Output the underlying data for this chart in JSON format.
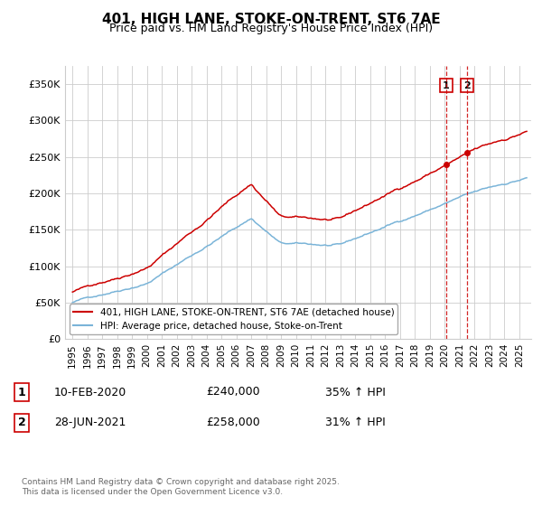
{
  "title": "401, HIGH LANE, STOKE-ON-TRENT, ST6 7AE",
  "subtitle": "Price paid vs. HM Land Registry's House Price Index (HPI)",
  "ylabel_ticks": [
    "£0",
    "£50K",
    "£100K",
    "£150K",
    "£200K",
    "£250K",
    "£300K",
    "£350K"
  ],
  "ytick_vals": [
    0,
    50000,
    100000,
    150000,
    200000,
    250000,
    300000,
    350000
  ],
  "ylim": [
    0,
    375000
  ],
  "xlim_start": 1994.5,
  "xlim_end": 2025.8,
  "sale1_date": 2020.1,
  "sale1_price": 240000,
  "sale1_label": "1",
  "sale2_date": 2021.5,
  "sale2_price": 258000,
  "sale2_label": "2",
  "hpi_color": "#7ab4d8",
  "price_color": "#cc0000",
  "vline_color": "#cc0000",
  "grid_color": "#cccccc",
  "background_color": "#ffffff",
  "legend1_text": "401, HIGH LANE, STOKE-ON-TRENT, ST6 7AE (detached house)",
  "legend2_text": "HPI: Average price, detached house, Stoke-on-Trent",
  "sale_info": [
    {
      "num": "1",
      "date": "10-FEB-2020",
      "price": "£240,000",
      "hpi": "35% ↑ HPI"
    },
    {
      "num": "2",
      "date": "28-JUN-2021",
      "price": "£258,000",
      "hpi": "31% ↑ HPI"
    }
  ],
  "footer": "Contains HM Land Registry data © Crown copyright and database right 2025.\nThis data is licensed under the Open Government Licence v3.0.",
  "xtick_years": [
    1995,
    1996,
    1997,
    1998,
    1999,
    2000,
    2001,
    2002,
    2003,
    2004,
    2005,
    2006,
    2007,
    2008,
    2009,
    2010,
    2011,
    2012,
    2013,
    2014,
    2015,
    2016,
    2017,
    2018,
    2019,
    2020,
    2021,
    2022,
    2023,
    2024,
    2025
  ]
}
